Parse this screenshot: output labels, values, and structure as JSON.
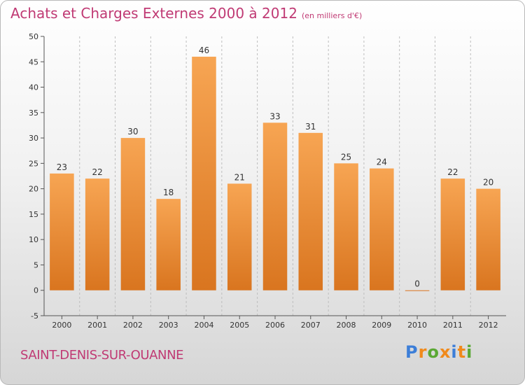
{
  "header": {
    "title": "Achats et Charges Externes 2000 à 2012",
    "unit": "(en milliers d'€)"
  },
  "footer": {
    "commune": "SAINT-DENIS-SUR-OUANNE",
    "logo": "Proxiti"
  },
  "colors": {
    "title": "#c03a74",
    "bar_top": "#f7a553",
    "bar_bottom": "#d9751f",
    "logo_letters": [
      "#3c7ed8",
      "#f08a1c",
      "#5aa834",
      "#f08a1c",
      "#3c7ed8",
      "#f08a1c",
      "#5aa834"
    ]
  },
  "chart_data": {
    "type": "bar",
    "categories": [
      "2000",
      "2001",
      "2002",
      "2003",
      "2004",
      "2005",
      "2006",
      "2007",
      "2008",
      "2009",
      "2010",
      "2011",
      "2012"
    ],
    "values": [
      23,
      22,
      30,
      18,
      46,
      21,
      33,
      31,
      25,
      24,
      0,
      22,
      20
    ],
    "data_labels": [
      "23",
      "22",
      "30",
      "18",
      "46",
      "21",
      "33",
      "31",
      "25",
      "24",
      "0",
      "22",
      "20"
    ],
    "title": "Achats et Charges Externes 2000 à 2012",
    "subtitle": "(en milliers d'€)",
    "xlabel": "",
    "ylabel": "",
    "ylim": [
      -5,
      50
    ],
    "yticks": [
      -5,
      0,
      5,
      10,
      15,
      20,
      25,
      30,
      35,
      40,
      45,
      50
    ],
    "ytick_labels": [
      "-5",
      "0",
      "5",
      "10",
      "15",
      "20",
      "25",
      "30",
      "35",
      "40",
      "45",
      "50"
    ],
    "grid": "vertical dashed between categories",
    "legend": "none"
  }
}
